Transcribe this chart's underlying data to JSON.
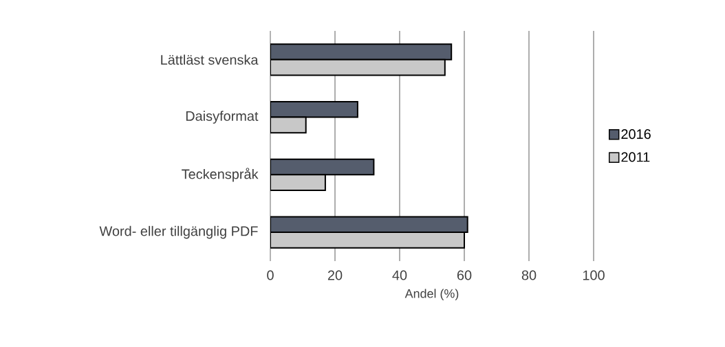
{
  "chart_data": {
    "type": "bar",
    "orientation": "horizontal",
    "xlabel": "Andel (%)",
    "categories": [
      "Lättläst svenska",
      "Daisyformat",
      "Teckenspråk",
      "Word- eller tillgänglig PDF"
    ],
    "series": [
      {
        "name": "2016",
        "color": "#555d6d",
        "values": [
          56,
          27,
          32,
          61
        ]
      },
      {
        "name": "2011",
        "color": "#c8c8c8",
        "values": [
          54,
          11,
          17,
          60
        ]
      }
    ],
    "xlim": [
      0,
      100
    ],
    "xticks": [
      0,
      20,
      40,
      60,
      80,
      100
    ],
    "grid": "x",
    "legend": "right"
  }
}
